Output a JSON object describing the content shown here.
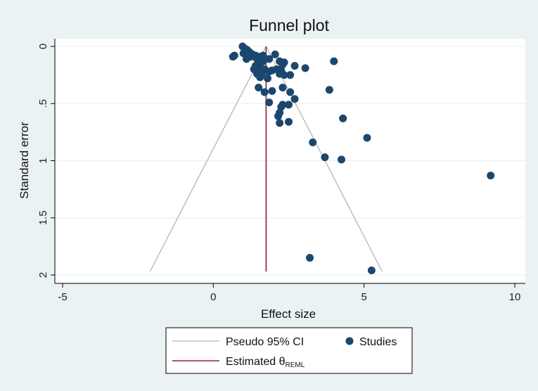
{
  "chart_data": {
    "type": "scatter",
    "title": "Funnel plot",
    "xlabel": "Effect size",
    "ylabel": "Standard error",
    "xlim": [
      -5,
      10
    ],
    "ylim": [
      0,
      2
    ],
    "y_reversed": true,
    "xticks": [
      -5,
      0,
      5,
      10
    ],
    "xtick_labels": [
      "-5",
      "0",
      "5",
      "10"
    ],
    "yticks": [
      0,
      0.5,
      1,
      1.5,
      2
    ],
    "ytick_labels": [
      "0",
      ".5",
      "1",
      "1.5",
      "2"
    ],
    "grid": true,
    "legend_placement": "bottom",
    "estimate": 1.75,
    "pseudo_ci": {
      "se_max": 1.97,
      "lower_at_max": -2.1,
      "upper_at_max": 5.6
    },
    "series": [
      {
        "name": "Studies",
        "points": [
          [
            0.97,
            0.0
          ],
          [
            1.05,
            0.02
          ],
          [
            1.12,
            0.03
          ],
          [
            1.2,
            0.05
          ],
          [
            1.0,
            0.06
          ],
          [
            1.3,
            0.07
          ],
          [
            1.4,
            0.08
          ],
          [
            1.25,
            0.09
          ],
          [
            1.55,
            0.09
          ],
          [
            1.65,
            0.08
          ],
          [
            0.7,
            0.08
          ],
          [
            0.65,
            0.09
          ],
          [
            1.1,
            0.11
          ],
          [
            1.45,
            0.11
          ],
          [
            1.85,
            0.11
          ],
          [
            1.5,
            0.13
          ],
          [
            1.65,
            0.13
          ],
          [
            2.05,
            0.07
          ],
          [
            2.2,
            0.13
          ],
          [
            2.35,
            0.14
          ],
          [
            2.3,
            0.16
          ],
          [
            2.7,
            0.17
          ],
          [
            3.05,
            0.19
          ],
          [
            4.0,
            0.13
          ],
          [
            1.4,
            0.17
          ],
          [
            1.55,
            0.18
          ],
          [
            1.35,
            0.2
          ],
          [
            1.7,
            0.2
          ],
          [
            1.95,
            0.21
          ],
          [
            2.1,
            0.2
          ],
          [
            2.25,
            0.21
          ],
          [
            1.45,
            0.24
          ],
          [
            1.6,
            0.24
          ],
          [
            1.85,
            0.22
          ],
          [
            2.2,
            0.24
          ],
          [
            2.35,
            0.25
          ],
          [
            2.55,
            0.25
          ],
          [
            1.55,
            0.27
          ],
          [
            1.8,
            0.28
          ],
          [
            2.3,
            0.36
          ],
          [
            1.5,
            0.36
          ],
          [
            1.7,
            0.4
          ],
          [
            1.95,
            0.39
          ],
          [
            2.55,
            0.4
          ],
          [
            3.85,
            0.38
          ],
          [
            2.7,
            0.46
          ],
          [
            1.85,
            0.49
          ],
          [
            2.3,
            0.51
          ],
          [
            2.25,
            0.53
          ],
          [
            2.5,
            0.51
          ],
          [
            2.2,
            0.58
          ],
          [
            2.15,
            0.61
          ],
          [
            4.3,
            0.63
          ],
          [
            2.2,
            0.67
          ],
          [
            2.5,
            0.66
          ],
          [
            5.1,
            0.8
          ],
          [
            3.3,
            0.84
          ],
          [
            3.7,
            0.97
          ],
          [
            4.25,
            0.99
          ],
          [
            9.2,
            1.13
          ],
          [
            3.2,
            1.85
          ],
          [
            5.25,
            1.96
          ]
        ]
      }
    ],
    "legend": {
      "ci_label": "Pseudo 95% CI",
      "studies_label": "Studies",
      "estimate_label_main": "Estimated θ",
      "estimate_label_sub": "REML"
    },
    "colors": {
      "background": "#eaf2f3",
      "plot_background": "#ffffff",
      "grid": "#eaf2f3",
      "ci_line": "#b5b5b5",
      "estimate_line": "#b0132f",
      "points": "#1a476f",
      "axis": "#000000"
    }
  }
}
